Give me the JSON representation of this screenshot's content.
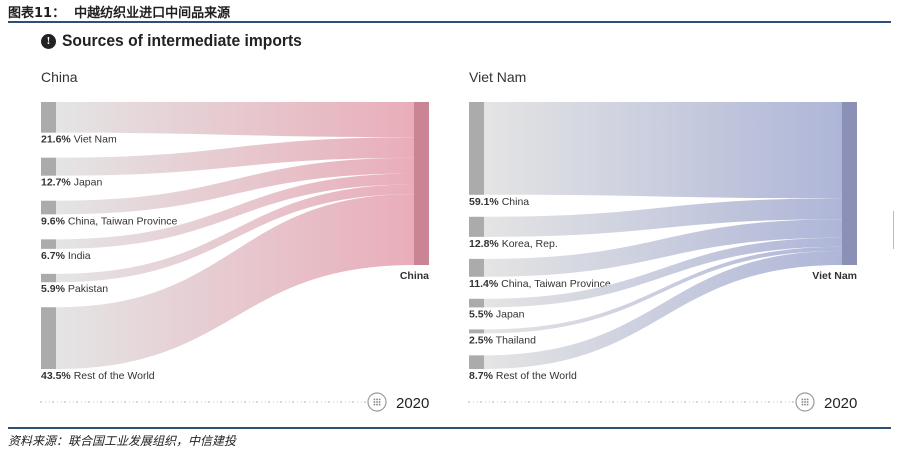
{
  "figure_title": "图表11：  中越纺织业进口中间品来源",
  "heading": "Sources of intermediate imports",
  "source_note": "资料来源：联合国工业发展组织，中信建投",
  "chart_data": [
    {
      "type": "sankey",
      "panel_title": "China",
      "target": "China",
      "year": "2020",
      "unit": "%",
      "flow_color": "#e8a9b6",
      "target_color": "#c98593",
      "sources": [
        {
          "label": "Viet Nam",
          "value": 21.6,
          "display": "21.6%"
        },
        {
          "label": "Japan",
          "value": 12.7,
          "display": "12.7%"
        },
        {
          "label": "China, Taiwan Province",
          "value": 9.6,
          "display": "9.6%"
        },
        {
          "label": "India",
          "value": 6.7,
          "display": "6.7%"
        },
        {
          "label": "Pakistan",
          "value": 5.9,
          "display": "5.9%"
        },
        {
          "label": "Rest of the World",
          "value": 43.5,
          "display": "43.5%"
        }
      ]
    },
    {
      "type": "sankey",
      "panel_title": "Viet Nam",
      "target": "Viet Nam",
      "year": "2020",
      "unit": "%",
      "flow_color": "#aab2d6",
      "target_color": "#8a90b6",
      "sources": [
        {
          "label": "China",
          "value": 59.1,
          "display": "59.1%"
        },
        {
          "label": "Korea, Rep.",
          "value": 12.8,
          "display": "12.8%"
        },
        {
          "label": "China, Taiwan Province",
          "value": 11.4,
          "display": "11.4%"
        },
        {
          "label": "Japan",
          "value": 5.5,
          "display": "5.5%"
        },
        {
          "label": "Thailand",
          "value": 2.5,
          "display": "2.5%"
        },
        {
          "label": "Rest of the World",
          "value": 8.7,
          "display": "8.7%"
        }
      ]
    }
  ]
}
